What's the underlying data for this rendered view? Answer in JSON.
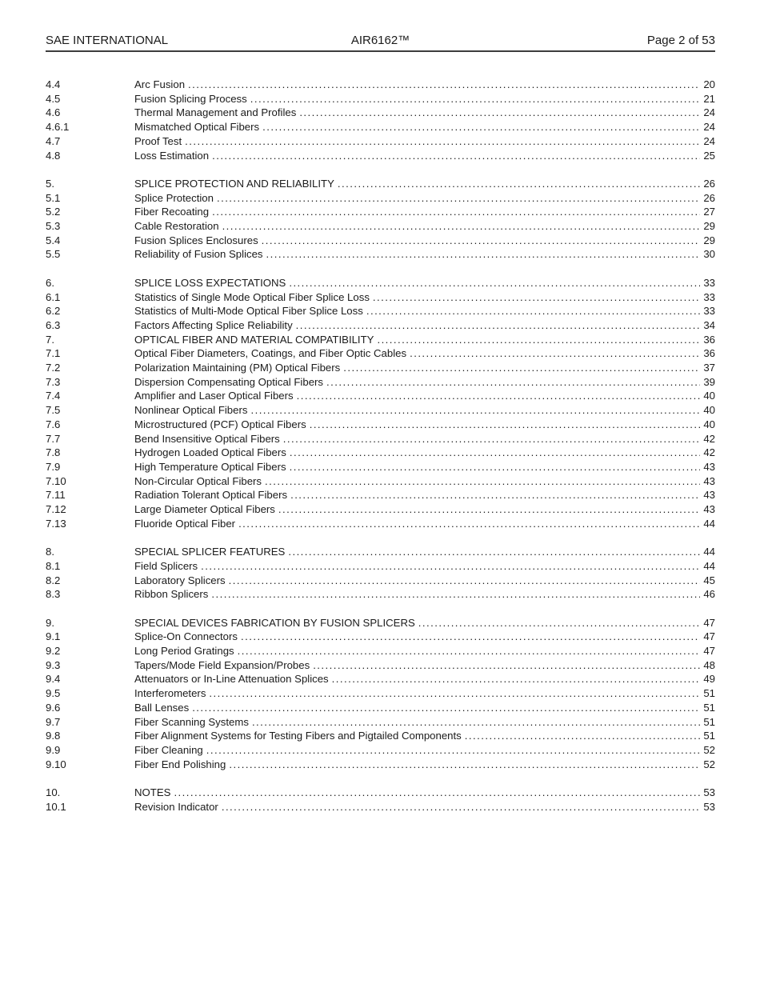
{
  "header": {
    "left": "SAE INTERNATIONAL",
    "center": "AIR6162™",
    "right": "Page 2 of 53"
  },
  "colors": {
    "text": "#1b1b1b",
    "header_rule": "#3d3d3d"
  },
  "toc_groups": [
    {
      "entries": [
        {
          "num": "4.4",
          "title": "Arc Fusion",
          "page": "20"
        },
        {
          "num": "4.5",
          "title": "Fusion Splicing Process",
          "page": "21"
        },
        {
          "num": "4.6",
          "title": "Thermal Management and Profiles",
          "page": "24"
        },
        {
          "num": "4.6.1",
          "title": "Mismatched Optical Fibers",
          "page": "24"
        },
        {
          "num": "4.7",
          "title": "Proof Test",
          "page": "24"
        },
        {
          "num": "4.8",
          "title": "Loss Estimation",
          "page": "25"
        }
      ]
    },
    {
      "entries": [
        {
          "num": "5.",
          "title": "SPLICE PROTECTION AND RELIABILITY",
          "page": "26"
        },
        {
          "num": "5.1",
          "title": "Splice Protection",
          "page": "26"
        },
        {
          "num": "5.2",
          "title": "Fiber Recoating",
          "page": "27"
        },
        {
          "num": "5.3",
          "title": "Cable Restoration",
          "page": "29"
        },
        {
          "num": "5.4",
          "title": "Fusion Splices Enclosures",
          "page": "29"
        },
        {
          "num": "5.5",
          "title": "Reliability of Fusion Splices",
          "page": "30"
        }
      ]
    },
    {
      "entries": [
        {
          "num": "6.",
          "title": "SPLICE LOSS EXPECTATIONS",
          "page": "33"
        },
        {
          "num": "6.1",
          "title": "Statistics of Single Mode Optical Fiber Splice Loss",
          "page": "33"
        },
        {
          "num": "6.2",
          "title": "Statistics of Multi-Mode Optical Fiber Splice Loss",
          "page": "33"
        },
        {
          "num": "6.3",
          "title": "Factors Affecting Splice Reliability",
          "page": "34"
        },
        {
          "num": "7.",
          "title": "OPTICAL FIBER AND MATERIAL COMPATIBILITY",
          "page": "36"
        },
        {
          "num": "7.1",
          "title": "Optical Fiber Diameters, Coatings, and Fiber Optic Cables",
          "page": "36"
        },
        {
          "num": "7.2",
          "title": "Polarization Maintaining (PM) Optical Fibers",
          "page": "37"
        },
        {
          "num": "7.3",
          "title": "Dispersion Compensating Optical Fibers",
          "page": "39"
        },
        {
          "num": "7.4",
          "title": "Amplifier and Laser Optical Fibers",
          "page": "40"
        },
        {
          "num": "7.5",
          "title": "Nonlinear Optical Fibers",
          "page": "40"
        },
        {
          "num": "7.6",
          "title": "Microstructured (PCF) Optical Fibers",
          "page": "40"
        },
        {
          "num": "7.7",
          "title": "Bend Insensitive Optical Fibers",
          "page": "42"
        },
        {
          "num": "7.8",
          "title": "Hydrogen Loaded Optical Fibers",
          "page": "42"
        },
        {
          "num": "7.9",
          "title": "High Temperature Optical Fibers",
          "page": "43"
        },
        {
          "num": "7.10",
          "title": "Non-Circular Optical Fibers",
          "page": "43"
        },
        {
          "num": "7.11",
          "title": "Radiation Tolerant Optical Fibers",
          "page": "43"
        },
        {
          "num": "7.12",
          "title": "Large Diameter Optical Fibers",
          "page": "43"
        },
        {
          "num": "7.13",
          "title": "Fluoride Optical Fiber",
          "page": "44"
        }
      ]
    },
    {
      "entries": [
        {
          "num": "8.",
          "title": "SPECIAL SPLICER FEATURES",
          "page": "44"
        },
        {
          "num": "8.1",
          "title": "Field Splicers",
          "page": "44"
        },
        {
          "num": "8.2",
          "title": "Laboratory Splicers",
          "page": "45"
        },
        {
          "num": "8.3",
          "title": "Ribbon Splicers",
          "page": "46"
        }
      ]
    },
    {
      "entries": [
        {
          "num": "9.",
          "title": "SPECIAL DEVICES FABRICATION BY FUSION SPLICERS",
          "page": "47"
        },
        {
          "num": "9.1",
          "title": "Splice-On Connectors",
          "page": "47"
        },
        {
          "num": "9.2",
          "title": "Long Period Gratings",
          "page": "47"
        },
        {
          "num": "9.3",
          "title": "Tapers/Mode Field Expansion/Probes",
          "page": "48"
        },
        {
          "num": "9.4",
          "title": "Attenuators or In-Line Attenuation Splices",
          "page": "49"
        },
        {
          "num": "9.5",
          "title": "Interferometers",
          "page": "51"
        },
        {
          "num": "9.6",
          "title": "Ball Lenses",
          "page": "51"
        },
        {
          "num": "9.7",
          "title": "Fiber Scanning Systems",
          "page": "51"
        },
        {
          "num": "9.8",
          "title": "Fiber Alignment Systems for Testing Fibers and Pigtailed Components",
          "page": "51"
        },
        {
          "num": "9.9",
          "title": "Fiber Cleaning",
          "page": "52"
        },
        {
          "num": "9.10",
          "title": "Fiber End Polishing",
          "page": "52"
        }
      ]
    },
    {
      "entries": [
        {
          "num": "10.",
          "title": "NOTES",
          "page": "53"
        },
        {
          "num": "10.1",
          "title": "Revision Indicator",
          "page": "53"
        }
      ]
    }
  ]
}
